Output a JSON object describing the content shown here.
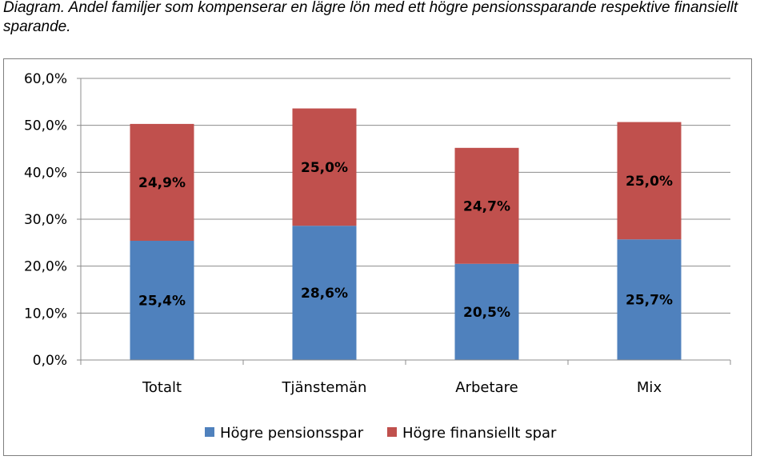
{
  "caption": "Diagram. Andel familjer som kompenserar en lägre lön med ett högre pensionssparande respektive finansiellt sparande.",
  "chart_data": {
    "type": "bar",
    "stacked": true,
    "categories": [
      "Totalt",
      "Tjänstemän",
      "Arbetare",
      "Mix"
    ],
    "series": [
      {
        "name": "Högre pensionsspar",
        "color": "#4f81bd",
        "values": [
          25.4,
          28.6,
          20.5,
          25.7
        ],
        "labels": [
          "25,4%",
          "28,6%",
          "20,5%",
          "25,7%"
        ]
      },
      {
        "name": "Högre finansiellt spar",
        "color": "#c0504d",
        "values": [
          24.9,
          25.0,
          24.7,
          25.0
        ],
        "labels": [
          "24,9%",
          "25,0%",
          "24,7%",
          "25,0%"
        ]
      }
    ],
    "ylim": [
      0,
      60
    ],
    "yticks": [
      0,
      10,
      20,
      30,
      40,
      50,
      60
    ],
    "ytick_labels": [
      "0,0%",
      "10,0%",
      "20,0%",
      "30,0%",
      "40,0%",
      "50,0%",
      "60,0%"
    ],
    "grid": true,
    "legend": "bottom"
  }
}
